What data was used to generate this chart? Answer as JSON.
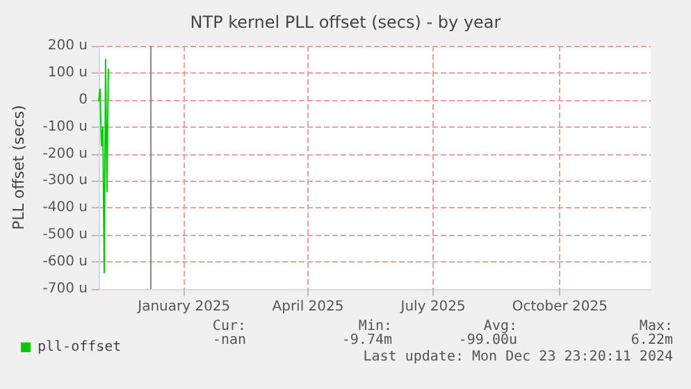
{
  "chart_data": {
    "type": "line",
    "title": "NTP kernel PLL offset (secs) - by year",
    "ylabel": "PLL offset (secs)",
    "x": [
      "2024-10-31",
      "2024-11-01",
      "2024-11-02",
      "2024-11-03",
      "2024-11-04",
      "2024-11-05",
      "2024-11-06",
      "2024-11-07"
    ],
    "series": [
      {
        "name": "pll-offset",
        "color": "#00cc00",
        "values": [
          -5,
          40,
          -170,
          -100,
          -640,
          150,
          -340,
          115
        ]
      }
    ],
    "xlim": [
      "2024-10-31",
      "2025-12-06"
    ],
    "xticks": [
      {
        "value": "2025-01-01",
        "label": "January 2025"
      },
      {
        "value": "2025-04-01",
        "label": "April 2025"
      },
      {
        "value": "2025-07-01",
        "label": "July 2025"
      },
      {
        "value": "2025-10-01",
        "label": "October 2025"
      }
    ],
    "ylim": [
      -700,
      200
    ],
    "yticks": [
      {
        "value": -700,
        "label": "-700 u"
      },
      {
        "value": -600,
        "label": "-600 u"
      },
      {
        "value": -500,
        "label": "-500 u"
      },
      {
        "value": -400,
        "label": "-400 u"
      },
      {
        "value": -300,
        "label": "-300 u"
      },
      {
        "value": -200,
        "label": "-200 u"
      },
      {
        "value": -100,
        "label": "-100 u"
      },
      0,
      {
        "value": 100,
        "label": "100 u"
      },
      {
        "value": 200,
        "label": "200 u"
      }
    ],
    "ref_lines": [
      {
        "axis": "x",
        "value": "2024-12-08",
        "color": "#888888"
      }
    ],
    "grid": true,
    "legend": "bottom left",
    "marker": "none",
    "line_style": "solid",
    "annotations": [
      "Cur:",
      "Min:",
      "Avg:",
      "Max:",
      "-nan",
      "-9.74m",
      "-99.00u",
      "6.22m",
      "Last update: Mon Dec 23 23:20:11 2024"
    ]
  }
}
